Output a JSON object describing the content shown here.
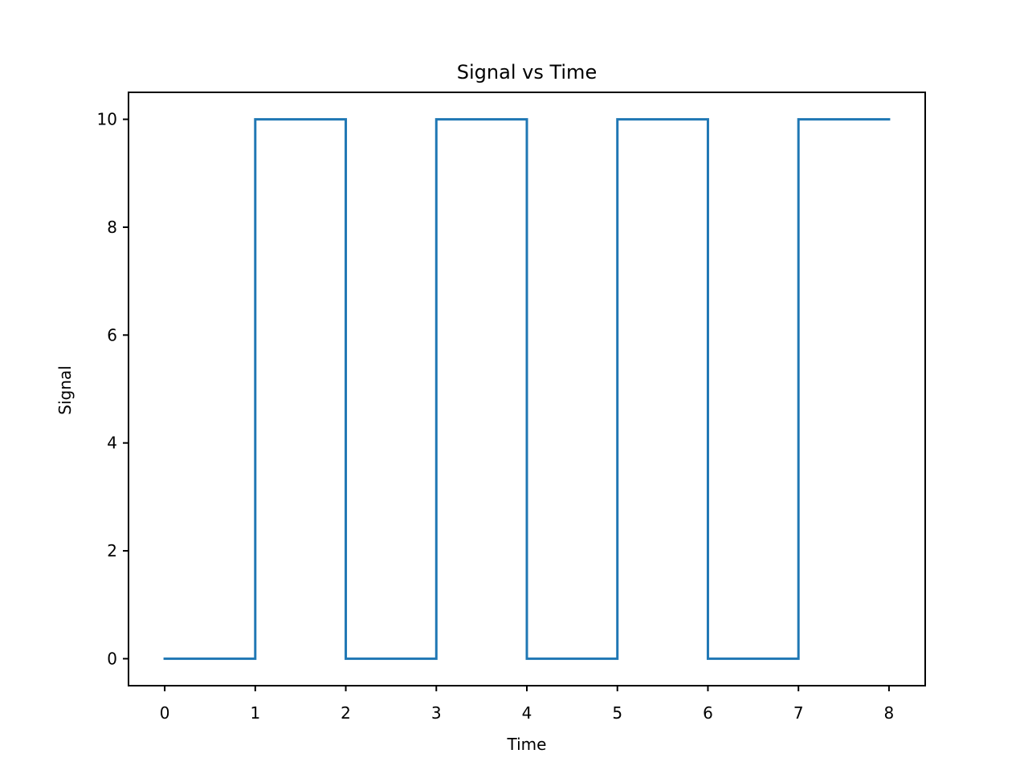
{
  "chart_data": {
    "type": "line",
    "title": "Signal vs Time",
    "xlabel": "Time",
    "ylabel": "Signal",
    "xlim": [
      -0.4,
      8.4
    ],
    "ylim": [
      -0.5,
      10.5
    ],
    "x_ticks": [
      0,
      1,
      2,
      3,
      4,
      5,
      6,
      7,
      8
    ],
    "y_ticks": [
      0,
      2,
      4,
      6,
      8,
      10
    ],
    "grid": false,
    "series": [
      {
        "step": "post",
        "color": "#1f77b4",
        "x": [
          0,
          1,
          2,
          3,
          4,
          5,
          6,
          7,
          8
        ],
        "values": [
          0,
          10,
          0,
          10,
          0,
          10,
          0,
          10,
          10
        ]
      }
    ]
  }
}
